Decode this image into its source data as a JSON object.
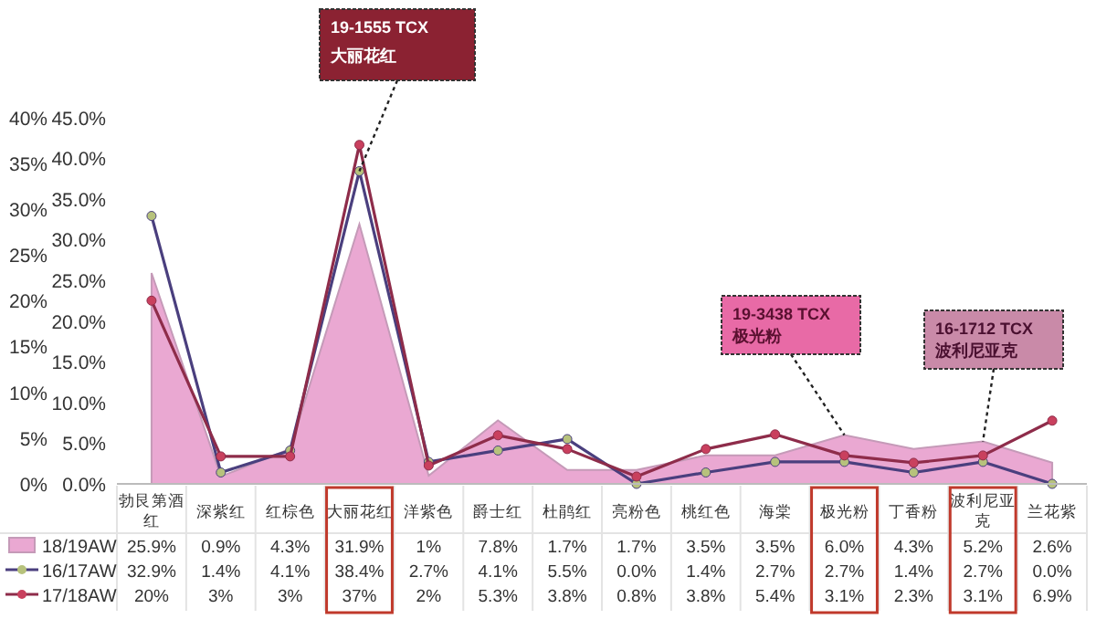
{
  "chart_data": {
    "type": "area",
    "categories": [
      "勃艮第酒红",
      "深紫红",
      "红棕色",
      "大丽花红",
      "洋紫色",
      "爵士红",
      "杜鹃红",
      "亮粉色",
      "桃红色",
      "海棠",
      "极光粉",
      "丁香粉",
      "波利尼亚克",
      "兰花紫"
    ],
    "series": [
      {
        "name": "18/19AW",
        "type": "area",
        "color": "#eaa8d2",
        "values": [
          25.9,
          0.9,
          4.3,
          31.9,
          1,
          7.8,
          1.7,
          1.7,
          3.5,
          3.5,
          6.0,
          4.3,
          5.2,
          2.6
        ],
        "value_labels": [
          "25.9%",
          "0.9%",
          "4.3%",
          "31.9%",
          "1%",
          "7.8%",
          "1.7%",
          "1.7%",
          "3.5%",
          "3.5%",
          "6.0%",
          "4.3%",
          "5.2%",
          "2.6%"
        ]
      },
      {
        "name": "16/17AW",
        "type": "line",
        "color": "#4a3f7e",
        "marker": "circle",
        "values": [
          32.9,
          1.4,
          4.1,
          38.4,
          2.7,
          4.1,
          5.5,
          0.0,
          1.4,
          2.7,
          2.7,
          1.4,
          2.7,
          0.0
        ],
        "value_labels": [
          "32.9%",
          "1.4%",
          "4.1%",
          "38.4%",
          "2.7%",
          "4.1%",
          "5.5%",
          "0.0%",
          "1.4%",
          "2.7%",
          "2.7%",
          "1.4%",
          "2.7%",
          "0.0%"
        ]
      },
      {
        "name": "17/18AW",
        "type": "line",
        "axis": "y2",
        "color": "#8e2c4a",
        "marker": "circle",
        "values": [
          20,
          3,
          3,
          37,
          2,
          5.3,
          3.8,
          0.8,
          3.8,
          5.4,
          3.1,
          2.3,
          3.1,
          6.9
        ],
        "value_labels": [
          "20%",
          "3%",
          "3%",
          "37%",
          "2%",
          "5.3%",
          "3.8%",
          "0.8%",
          "3.8%",
          "5.4%",
          "3.1%",
          "2.3%",
          "3.1%",
          "6.9%"
        ]
      }
    ],
    "ylim": [
      0,
      45
    ],
    "yticks": [
      {
        "value": 0,
        "label": "0.0%"
      },
      {
        "value": 5,
        "label": "5.0%"
      },
      {
        "value": 10,
        "label": "10.0%"
      },
      {
        "value": 15,
        "label": "15.0%"
      },
      {
        "value": 20,
        "label": "20.0%"
      },
      {
        "value": 25,
        "label": "25.0%"
      },
      {
        "value": 30,
        "label": "30.0%"
      },
      {
        "value": 35,
        "label": "35.0%"
      },
      {
        "value": 40,
        "label": "40.0%"
      },
      {
        "value": 45,
        "label": "45.0%"
      }
    ],
    "y2lim": [
      0,
      40
    ],
    "y2ticks": [
      {
        "value": 0,
        "label": "0%"
      },
      {
        "value": 5,
        "label": "5%"
      },
      {
        "value": 10,
        "label": "10%"
      },
      {
        "value": 15,
        "label": "15%"
      },
      {
        "value": 20,
        "label": "20%"
      },
      {
        "value": 25,
        "label": "25%"
      },
      {
        "value": 30,
        "label": "30%"
      },
      {
        "value": 35,
        "label": "35%"
      },
      {
        "value": 40,
        "label": "40%"
      }
    ],
    "legend": "bottom",
    "grid": false,
    "annotations": [
      {
        "text": "19-1555 TCX\n大丽花红",
        "x": "大丽花红",
        "y": 38.4
      },
      {
        "text": "19-3438 TCX\n极光粉",
        "x": "极光粉",
        "y": 6.0
      },
      {
        "text": "16-1712 TCX\n波利尼亚克",
        "x": "波利尼亚克",
        "y": 5.2
      }
    ]
  }
}
